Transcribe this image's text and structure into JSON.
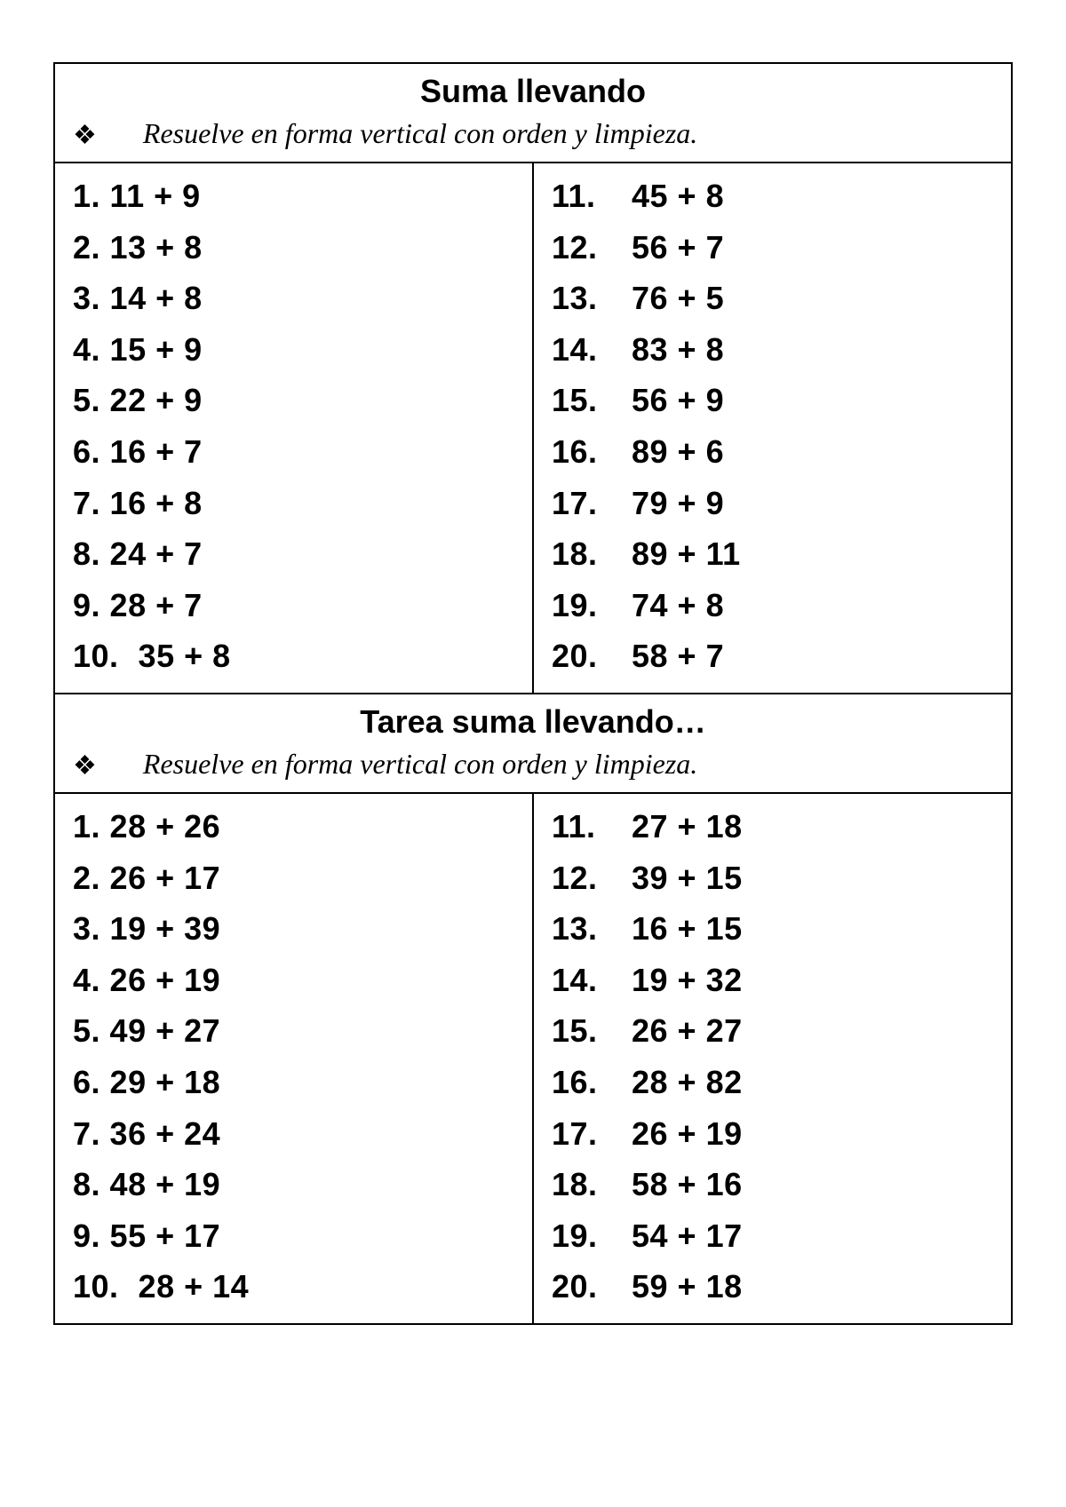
{
  "colors": {
    "background": "#ffffff",
    "text": "#000000",
    "border": "#000000"
  },
  "typography": {
    "title_fontsize": 36,
    "problem_fontsize": 36,
    "instruction_fontsize": 32,
    "title_font": "Arial Black",
    "problem_font": "Arial Black",
    "instruction_font": "Palatino italic"
  },
  "section1": {
    "title": "Suma llevando",
    "bullet": "❖",
    "instruction": "Resuelve en forma vertical con orden y limpieza.",
    "left": [
      {
        "n": "1.",
        "expr": "11 + 9"
      },
      {
        "n": "2.",
        "expr": "13 + 8"
      },
      {
        "n": "3.",
        "expr": "14 + 8"
      },
      {
        "n": "4.",
        "expr": "15 + 9"
      },
      {
        "n": "5.",
        "expr": "22 + 9"
      },
      {
        "n": "6.",
        "expr": "16 + 7"
      },
      {
        "n": "7.",
        "expr": "16 + 8"
      },
      {
        "n": "8.",
        "expr": "24 + 7"
      },
      {
        "n": "9.",
        "expr": "28 + 7"
      },
      {
        "n": "10.",
        "expr": "35 + 8"
      }
    ],
    "right": [
      {
        "n": "11.",
        "expr": "45 + 8"
      },
      {
        "n": "12.",
        "expr": "56 + 7"
      },
      {
        "n": "13.",
        "expr": "76 + 5"
      },
      {
        "n": "14.",
        "expr": "83 + 8"
      },
      {
        "n": "15.",
        "expr": "56 + 9"
      },
      {
        "n": "16.",
        "expr": "89 + 6"
      },
      {
        "n": "17.",
        "expr": "79 + 9"
      },
      {
        "n": "18.",
        "expr": "89 + 11"
      },
      {
        "n": "19.",
        "expr": "74 + 8"
      },
      {
        "n": "20.",
        "expr": "58 + 7"
      }
    ]
  },
  "section2": {
    "title": "Tarea suma llevando…",
    "bullet": "❖",
    "instruction": "Resuelve en forma vertical con orden y limpieza.",
    "left": [
      {
        "n": "1.",
        "expr": "28 + 26"
      },
      {
        "n": "2.",
        "expr": "26 + 17"
      },
      {
        "n": "3.",
        "expr": "19 + 39"
      },
      {
        "n": "4.",
        "expr": "26 + 19"
      },
      {
        "n": "5.",
        "expr": "49 + 27"
      },
      {
        "n": "6.",
        "expr": "29 + 18"
      },
      {
        "n": "7.",
        "expr": "36 + 24"
      },
      {
        "n": "8.",
        "expr": "48 + 19"
      },
      {
        "n": "9.",
        "expr": "55 + 17"
      },
      {
        "n": "10.",
        "expr": "28 + 14"
      }
    ],
    "right": [
      {
        "n": "11.",
        "expr": "27 + 18"
      },
      {
        "n": "12.",
        "expr": "39 + 15"
      },
      {
        "n": "13.",
        "expr": "16 + 15"
      },
      {
        "n": "14.",
        "expr": "19 + 32"
      },
      {
        "n": "15.",
        "expr": "26 + 27"
      },
      {
        "n": "16.",
        "expr": "28 + 82"
      },
      {
        "n": "17.",
        "expr": "26 + 19"
      },
      {
        "n": "18.",
        "expr": "58 + 16"
      },
      {
        "n": "19.",
        "expr": "54 + 17"
      },
      {
        "n": "20.",
        "expr": "59 + 18"
      }
    ]
  }
}
